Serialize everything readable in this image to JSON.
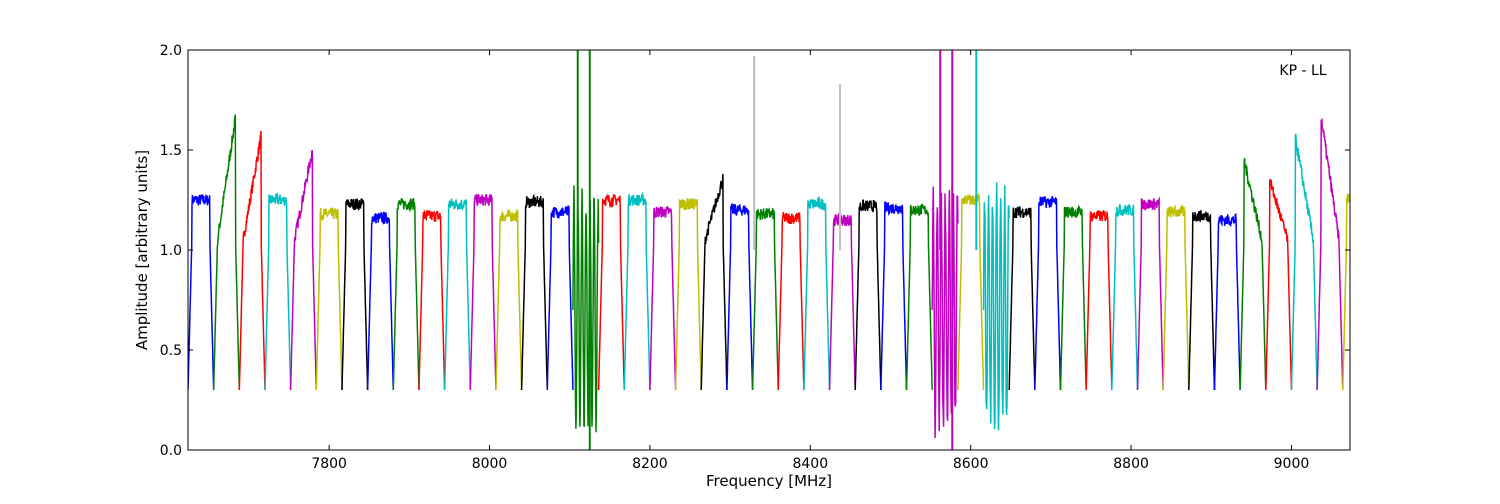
{
  "chart_data": {
    "type": "line",
    "title": "",
    "annotation": "KP - LL",
    "xlabel": "Frequency [MHz]",
    "ylabel": "Amplitude [arbitrary units]",
    "xlim": [
      7624,
      9073
    ],
    "ylim": [
      0.0,
      2.0
    ],
    "xticks": [
      7800,
      8000,
      8200,
      8400,
      8600,
      8800,
      9000
    ],
    "xtick_labels": [
      "7800",
      "8000",
      "8200",
      "8400",
      "8600",
      "8800",
      "9000"
    ],
    "yticks": [
      0.0,
      0.5,
      1.0,
      1.5,
      2.0
    ],
    "ytick_labels": [
      "0.0",
      "0.5",
      "1.0",
      "1.5",
      "2.0"
    ],
    "grid": false,
    "legend": "none",
    "color_cycle": [
      "#0000ff",
      "#008000",
      "#ff0000",
      "#00bfbf",
      "#bf00bf",
      "#bfbf00",
      "#000000"
    ],
    "series_note": "Approximately 36 bandpass channels, each about 32 MHz wide, colored in repeating cycle.",
    "channels": [
      {
        "start": 7624,
        "color": "#0000ff",
        "peak": 1.3,
        "shape": "flat"
      },
      {
        "start": 7656,
        "color": "#008000",
        "peak": 1.66,
        "shape": "rise"
      },
      {
        "start": 7688,
        "color": "#ff0000",
        "peak": 1.57,
        "shape": "rise"
      },
      {
        "start": 7720,
        "color": "#00bfbf",
        "peak": 1.3,
        "shape": "flat"
      },
      {
        "start": 7752,
        "color": "#bf00bf",
        "peak": 1.5,
        "shape": "rise"
      },
      {
        "start": 7784,
        "color": "#bfbf00",
        "peak": 1.23,
        "shape": "flat"
      },
      {
        "start": 7816,
        "color": "#000000",
        "peak": 1.28,
        "shape": "flat"
      },
      {
        "start": 7848,
        "color": "#0000ff",
        "peak": 1.21,
        "shape": "flat"
      },
      {
        "start": 7880,
        "color": "#008000",
        "peak": 1.28,
        "shape": "flat"
      },
      {
        "start": 7912,
        "color": "#ff0000",
        "peak": 1.22,
        "shape": "flat"
      },
      {
        "start": 7944,
        "color": "#00bfbf",
        "peak": 1.28,
        "shape": "flat"
      },
      {
        "start": 7976,
        "color": "#bf00bf",
        "peak": 1.3,
        "shape": "flat"
      },
      {
        "start": 8008,
        "color": "#bfbf00",
        "peak": 1.22,
        "shape": "flat"
      },
      {
        "start": 8040,
        "color": "#000000",
        "peak": 1.29,
        "shape": "flat"
      },
      {
        "start": 8072,
        "color": "#0000ff",
        "peak": 1.24,
        "shape": "flat"
      },
      {
        "start": 8104,
        "color": "#008000",
        "peak": 1.15,
        "shape": "noisy"
      },
      {
        "start": 8136,
        "color": "#ff0000",
        "peak": 1.3,
        "shape": "flat"
      },
      {
        "start": 8168,
        "color": "#00bfbf",
        "peak": 1.3,
        "shape": "flat"
      },
      {
        "start": 8200,
        "color": "#bf00bf",
        "peak": 1.24,
        "shape": "flat"
      },
      {
        "start": 8232,
        "color": "#bfbf00",
        "peak": 1.28,
        "shape": "flat"
      },
      {
        "start": 8264,
        "color": "#000000",
        "peak": 1.36,
        "shape": "rise"
      },
      {
        "start": 8296,
        "color": "#0000ff",
        "peak": 1.25,
        "shape": "flat"
      },
      {
        "start": 8328,
        "color": "#008000",
        "peak": 1.23,
        "shape": "flat"
      },
      {
        "start": 8360,
        "color": "#ff0000",
        "peak": 1.21,
        "shape": "flat"
      },
      {
        "start": 8392,
        "color": "#00bfbf",
        "peak": 1.28,
        "shape": "flat"
      },
      {
        "start": 8424,
        "color": "#bf00bf",
        "peak": 1.2,
        "shape": "flat"
      },
      {
        "start": 8456,
        "color": "#000000",
        "peak": 1.27,
        "shape": "flat"
      },
      {
        "start": 8488,
        "color": "#0000ff",
        "peak": 1.26,
        "shape": "flat"
      },
      {
        "start": 8520,
        "color": "#008000",
        "peak": 1.25,
        "shape": "flat"
      },
      {
        "start": 8552,
        "color": "#bf00bf",
        "peak": 1.2,
        "shape": "noisy"
      },
      {
        "start": 8584,
        "color": "#bfbf00",
        "peak": 1.3,
        "shape": "flat"
      },
      {
        "start": 8616,
        "color": "#00bfbf",
        "peak": 1.3,
        "shape": "noisy"
      },
      {
        "start": 8648,
        "color": "#000000",
        "peak": 1.24,
        "shape": "flat"
      },
      {
        "start": 8680,
        "color": "#0000ff",
        "peak": 1.29,
        "shape": "flat"
      },
      {
        "start": 8712,
        "color": "#008000",
        "peak": 1.24,
        "shape": "flat"
      },
      {
        "start": 8744,
        "color": "#ff0000",
        "peak": 1.22,
        "shape": "flat"
      },
      {
        "start": 8776,
        "color": "#00bfbf",
        "peak": 1.25,
        "shape": "flat"
      },
      {
        "start": 8808,
        "color": "#bf00bf",
        "peak": 1.28,
        "shape": "flat"
      },
      {
        "start": 8840,
        "color": "#bfbf00",
        "peak": 1.24,
        "shape": "flat"
      },
      {
        "start": 8872,
        "color": "#000000",
        "peak": 1.22,
        "shape": "flat"
      },
      {
        "start": 8904,
        "color": "#0000ff",
        "peak": 1.2,
        "shape": "flat"
      },
      {
        "start": 8936,
        "color": "#008000",
        "peak": 1.45,
        "shape": "fall"
      },
      {
        "start": 8968,
        "color": "#ff0000",
        "peak": 1.35,
        "shape": "fall"
      },
      {
        "start": 9000,
        "color": "#00bfbf",
        "peak": 1.56,
        "shape": "fall"
      },
      {
        "start": 9032,
        "color": "#bf00bf",
        "peak": 1.67,
        "shape": "fall"
      },
      {
        "start": 9064,
        "color": "#bfbf00",
        "peak": 1.31,
        "shape": "flat"
      }
    ],
    "spikes": [
      {
        "x": 8110,
        "y": 2.0,
        "color": "#008000"
      },
      {
        "x": 8125,
        "y": 2.0,
        "color": "#008000"
      },
      {
        "x": 8125,
        "y": 0.0,
        "color": "#008000"
      },
      {
        "x": 8330,
        "y": 1.97,
        "color": "#c0c0c0"
      },
      {
        "x": 8437,
        "y": 1.83,
        "color": "#c0c0c0"
      },
      {
        "x": 8562,
        "y": 2.0,
        "color": "#bf00bf"
      },
      {
        "x": 8577,
        "y": 2.0,
        "color": "#bf00bf"
      },
      {
        "x": 8577,
        "y": 0.0,
        "color": "#bf00bf"
      },
      {
        "x": 8607,
        "y": 2.0,
        "color": "#00bfbf"
      }
    ]
  }
}
